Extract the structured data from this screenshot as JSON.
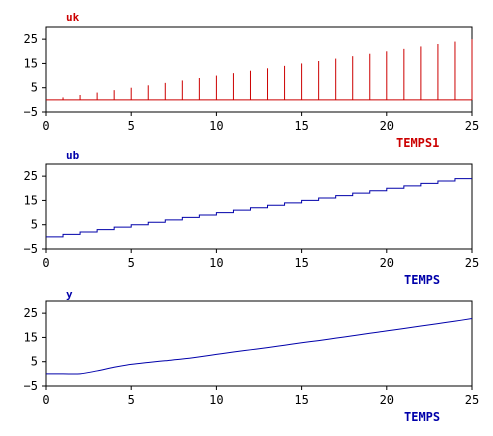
{
  "chart_data": [
    {
      "type": "bar",
      "style": "stem",
      "title": "uk",
      "xlabel": "TEMPS1",
      "ylabel": "",
      "xlim": [
        0,
        25
      ],
      "ylim": [
        -5,
        30
      ],
      "xticks": [
        0,
        5,
        10,
        15,
        20,
        25
      ],
      "yticks": [
        -5,
        5,
        15,
        25
      ],
      "color": "#cc0000",
      "title_color": "#cc0000",
      "xlabel_color": "#cc0000",
      "baseline": 0,
      "grid": false,
      "x": [
        0,
        1,
        2,
        3,
        4,
        5,
        6,
        7,
        8,
        9,
        10,
        11,
        12,
        13,
        14,
        15,
        16,
        17,
        18,
        19,
        20,
        21,
        22,
        23,
        24,
        25
      ],
      "values": [
        0,
        1,
        2,
        3,
        4,
        5,
        6,
        7,
        8,
        9,
        10,
        11,
        12,
        13,
        14,
        15,
        16,
        17,
        18,
        19,
        20,
        21,
        22,
        23,
        24,
        25
      ]
    },
    {
      "type": "line",
      "style": "step",
      "title": "ub",
      "xlabel": "TEMPS",
      "ylabel": "",
      "xlim": [
        0,
        25
      ],
      "ylim": [
        -5,
        30
      ],
      "xticks": [
        0,
        5,
        10,
        15,
        20,
        25
      ],
      "yticks": [
        -5,
        5,
        15,
        25
      ],
      "color": "#0000aa",
      "title_color": "#0000aa",
      "xlabel_color": "#0000aa",
      "grid": false,
      "x": [
        0,
        1,
        2,
        3,
        4,
        5,
        6,
        7,
        8,
        9,
        10,
        11,
        12,
        13,
        14,
        15,
        16,
        17,
        18,
        19,
        20,
        21,
        22,
        23,
        24,
        25
      ],
      "values": [
        0,
        1,
        2,
        3,
        4,
        5,
        6,
        7,
        8,
        9,
        10,
        11,
        12,
        13,
        14,
        15,
        16,
        17,
        18,
        19,
        20,
        21,
        22,
        23,
        24,
        24
      ]
    },
    {
      "type": "line",
      "style": "smooth",
      "title": "y",
      "xlabel": "TEMPS",
      "ylabel": "",
      "xlim": [
        0,
        25
      ],
      "ylim": [
        -5,
        30
      ],
      "xticks": [
        0,
        5,
        10,
        15,
        20,
        25
      ],
      "yticks": [
        -5,
        5,
        15,
        25
      ],
      "color": "#0000aa",
      "title_color": "#0000aa",
      "xlabel_color": "#0000aa",
      "grid": false,
      "x": [
        0,
        1,
        2,
        3,
        4,
        5,
        6,
        7,
        8,
        9,
        10,
        11,
        12,
        13,
        14,
        15,
        16,
        17,
        18,
        19,
        20,
        21,
        22,
        23,
        24,
        25
      ],
      "values": [
        0,
        0,
        0,
        1.2,
        2.7,
        3.9,
        4.7,
        5.4,
        6.1,
        7.0,
        8.0,
        9.0,
        9.9,
        10.8,
        11.8,
        12.8,
        13.7,
        14.7,
        15.7,
        16.7,
        17.7,
        18.7,
        19.7,
        20.7,
        21.7,
        22.8
      ]
    }
  ]
}
